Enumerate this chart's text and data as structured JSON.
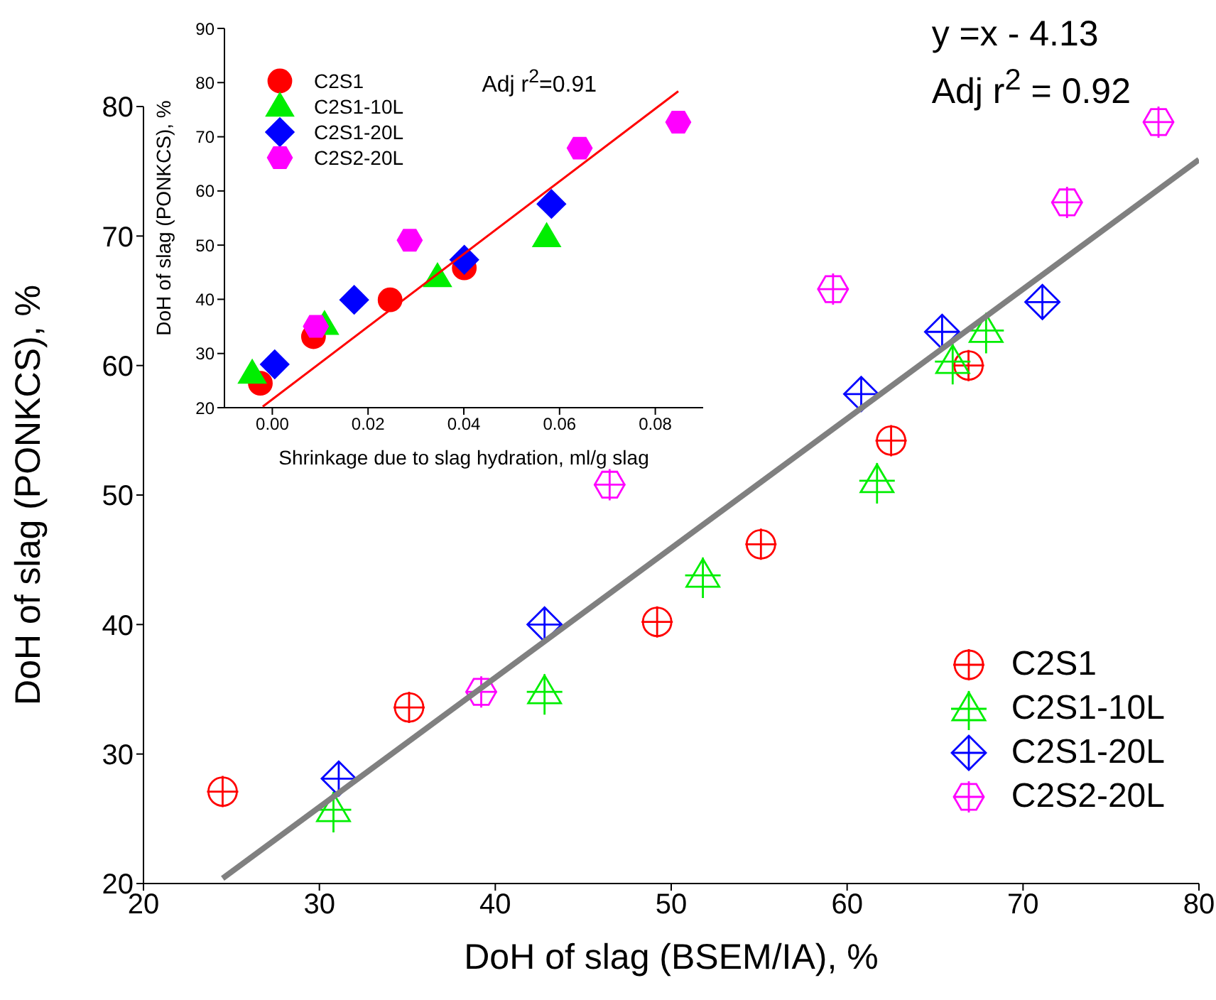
{
  "chart_data": [
    {
      "type": "scatter",
      "xlabel": "DoH of slag (BSEM/IA), %",
      "ylabel": "DoH of slag (PONKCS), %",
      "xlim": [
        20,
        80
      ],
      "ylim": [
        20,
        80
      ],
      "xticks": [
        20,
        30,
        40,
        50,
        60,
        70,
        80
      ],
      "yticks": [
        20,
        30,
        40,
        50,
        60,
        70,
        80
      ],
      "legend": "bottom right",
      "annotations": [
        "y =x - 4.13",
        "Adj r$^{2}$ = 0.92"
      ],
      "series": [
        {
          "name": "C2S1",
          "color": "#ff0000",
          "marker": "circle",
          "x": [
            24.5,
            35.1,
            49.2,
            55.1,
            62.5,
            66.9
          ],
          "values": [
            27.1,
            33.6,
            40.2,
            46.2,
            54.2,
            60.0
          ]
        },
        {
          "name": "C2S1-10L",
          "color": "#00ee00",
          "marker": "triangle",
          "x": [
            30.8,
            42.8,
            51.8,
            61.7,
            66.0,
            67.9
          ],
          "values": [
            25.7,
            34.8,
            43.8,
            51.1,
            60.3,
            62.7
          ]
        },
        {
          "name": "C2S1-20L",
          "color": "#0000ff",
          "marker": "diamond",
          "x": [
            31.1,
            42.8,
            60.8,
            65.4,
            71.1
          ],
          "values": [
            28.1,
            40.0,
            57.8,
            62.6,
            64.9
          ]
        },
        {
          "name": "C2S2-20L",
          "color": "#ff00ff",
          "x": [
            39.2,
            46.5,
            59.2,
            72.5,
            77.7
          ],
          "values": [
            34.8,
            50.8,
            65.9,
            72.6,
            78.8
          ]
        },
        {
          "type": "line",
          "color": "#808080",
          "marker": "none",
          "x": [
            24.5,
            80
          ],
          "values": [
            20.4,
            75.9
          ]
        }
      ]
    },
    {
      "type": "scatter",
      "xlabel": "Shrinkage due to slag hydration, ml/g slag",
      "ylabel": "DoH of slag (PONKCS), %",
      "xlim": [
        -0.01,
        0.09
      ],
      "ylim": [
        20,
        90
      ],
      "xticks": [
        {
          "value": 0,
          "label": "0.00"
        },
        0.02,
        0.04,
        0.06,
        0.08
      ],
      "yticks": [
        20,
        30,
        40,
        50,
        60,
        70,
        80,
        90
      ],
      "legend": "top left",
      "annotations": [
        "Adj r$^{2}$=0.91"
      ],
      "series": [
        {
          "name": "C2S1",
          "color": "#ff0000",
          "marker": "circle",
          "x": [
            -0.0025,
            0.0086,
            0.0246,
            0.0401
          ],
          "values": [
            24.5,
            33.1,
            39.9,
            45.8
          ]
        },
        {
          "name": "C2S1-10L",
          "color": "#00ee00",
          "marker": "triangle",
          "x": [
            -0.0042,
            0.0109,
            0.0345,
            0.0573
          ],
          "values": [
            26.3,
            35.3,
            44.1,
            51.5
          ]
        },
        {
          "name": "C2S1-20L",
          "color": "#0000ff",
          "marker": "diamond",
          "x": [
            0.0005,
            0.0171,
            0.0401,
            0.0583
          ],
          "values": [
            28.0,
            39.9,
            47.3,
            57.6
          ]
        },
        {
          "name": "C2S2-20L",
          "color": "#ff00ff",
          "x": [
            0.0091,
            0.0287,
            0.0642,
            0.0848
          ],
          "values": [
            35.0,
            50.9,
            67.9,
            72.7
          ]
        },
        {
          "type": "line",
          "color": "#ff0000",
          "marker": "none",
          "x": [
            -0.002,
            0.0848
          ],
          "values": [
            20.2,
            78.4
          ]
        }
      ]
    }
  ]
}
